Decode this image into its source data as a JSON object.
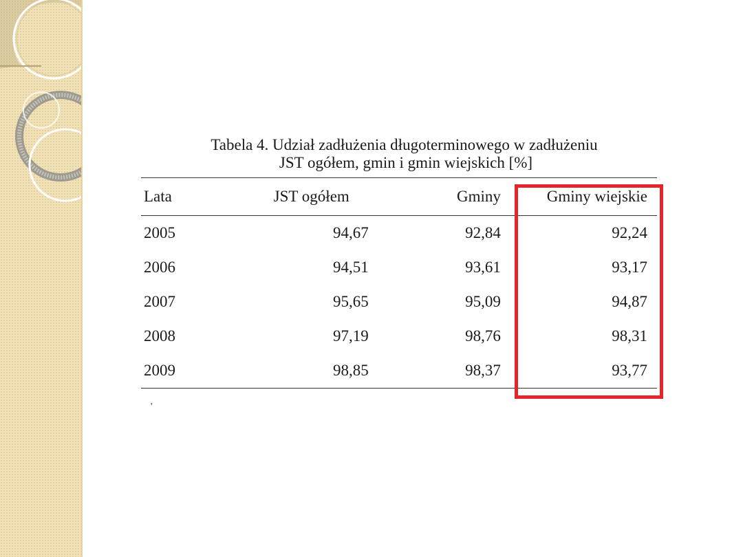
{
  "caption": {
    "line1": "Tabela 4. Udział zadłużenia długoterminowego w zadłużeniu",
    "line2": "JST ogółem, gmin i gmin wiejskich [%]"
  },
  "table": {
    "headers": [
      "Lata",
      "JST ogółem",
      "Gminy",
      "Gminy wiejskie"
    ],
    "rows": [
      [
        "2005",
        "94,67",
        "92,84",
        "92,24"
      ],
      [
        "2006",
        "94,51",
        "93,61",
        "93,17"
      ],
      [
        "2007",
        "95,65",
        "95,09",
        "94,87"
      ],
      [
        "2008",
        "97,19",
        "98,76",
        "98,31"
      ],
      [
        "2009",
        "98,85",
        "98,37",
        "93,77"
      ]
    ]
  },
  "footnote": "'",
  "colors": {
    "highlight": "#e3262d",
    "sidebar": "#f2e2b8"
  }
}
